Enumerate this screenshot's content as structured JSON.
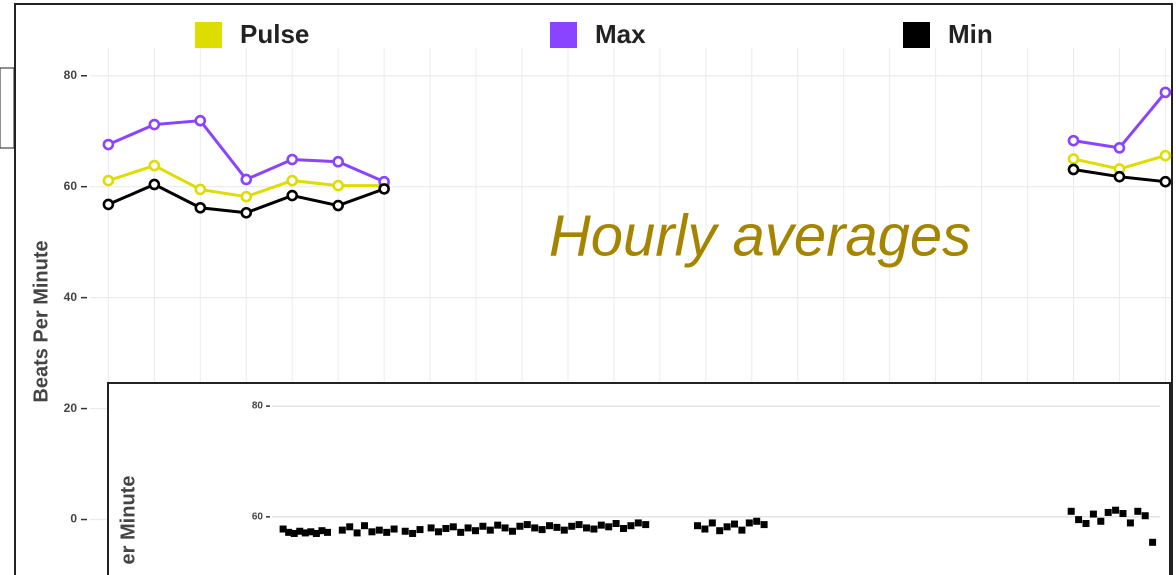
{
  "chart_data": [
    {
      "type": "line",
      "annotation": "Hourly averages",
      "y_label": "Beats Per Minute",
      "x": [
        0,
        1,
        2,
        3,
        4,
        5,
        6,
        7,
        8,
        9,
        10,
        11,
        12,
        13,
        14,
        15,
        16,
        17,
        18,
        19,
        20,
        21,
        22,
        23
      ],
      "xlim": [
        -0.4,
        23.1
      ],
      "xticks": [
        0,
        1,
        2,
        3,
        4,
        5,
        6,
        7,
        8,
        9,
        10,
        11,
        12,
        13,
        14,
        15,
        16,
        17,
        18,
        19,
        20,
        21,
        22,
        23
      ],
      "ylim": [
        -10,
        85
      ],
      "yticks": [
        0,
        20,
        40,
        60,
        80
      ],
      "grid": true,
      "legend": "top",
      "series": [
        {
          "name": "Pulse",
          "color": "#dddd00",
          "values": [
            61.1,
            63.8,
            59.5,
            58.2,
            61.1,
            60.2,
            60.2,
            null,
            null,
            null,
            null,
            null,
            null,
            null,
            null,
            null,
            null,
            null,
            null,
            null,
            null,
            65.0,
            63.2,
            65.6
          ]
        },
        {
          "name": "Max",
          "color": "#8a44ff",
          "values": [
            67.6,
            71.2,
            71.9,
            61.3,
            64.9,
            64.5,
            60.9,
            null,
            null,
            null,
            null,
            null,
            null,
            null,
            null,
            null,
            null,
            null,
            null,
            null,
            null,
            68.3,
            67.0,
            77.0
          ]
        },
        {
          "name": "Min",
          "color": "#000000",
          "values": [
            56.8,
            60.4,
            56.2,
            55.3,
            58.4,
            56.6,
            59.6,
            null,
            null,
            null,
            null,
            null,
            null,
            null,
            null,
            null,
            null,
            null,
            null,
            null,
            null,
            63.1,
            61.8,
            60.9
          ]
        }
      ]
    },
    {
      "type": "scatter",
      "y_label": "er Minute",
      "color": "#000000",
      "xlim": [
        0,
        24
      ],
      "ylim": [
        49.5,
        82
      ],
      "yticks": [
        60,
        80
      ],
      "grid": true,
      "x": [
        0.3,
        0.45,
        0.6,
        0.75,
        0.9,
        1.05,
        1.2,
        1.35,
        1.5,
        1.9,
        2.1,
        2.3,
        2.5,
        2.7,
        2.9,
        3.1,
        3.3,
        3.6,
        3.8,
        4.0,
        4.3,
        4.5,
        4.7,
        4.9,
        5.1,
        5.3,
        5.5,
        5.7,
        5.9,
        6.1,
        6.3,
        6.5,
        6.7,
        6.9,
        7.1,
        7.3,
        7.5,
        7.7,
        7.9,
        8.1,
        8.3,
        8.5,
        8.7,
        8.9,
        9.1,
        9.3,
        9.5,
        9.7,
        9.9,
        10.1,
        11.5,
        11.7,
        11.9,
        12.1,
        12.3,
        12.5,
        12.7,
        12.9,
        13.1,
        13.3,
        21.6,
        21.8,
        22.0,
        22.2,
        22.4,
        22.6,
        22.8,
        23.0,
        23.2,
        23.4,
        23.6,
        23.8
      ],
      "values": [
        57.8,
        57.2,
        57.0,
        57.4,
        57.1,
        57.3,
        57.0,
        57.5,
        57.2,
        57.6,
        58.2,
        57.1,
        58.4,
        57.3,
        57.6,
        57.2,
        57.8,
        57.4,
        57.0,
        57.7,
        58.0,
        57.3,
        57.9,
        58.2,
        57.2,
        58.0,
        57.5,
        58.3,
        57.6,
        58.5,
        58.0,
        57.4,
        58.3,
        58.6,
        58.0,
        57.7,
        58.4,
        58.1,
        57.6,
        58.3,
        58.6,
        58.0,
        57.8,
        58.5,
        58.2,
        58.8,
        57.9,
        58.4,
        58.9,
        58.6,
        58.4,
        57.8,
        58.9,
        57.5,
        58.2,
        58.7,
        57.6,
        58.9,
        59.2,
        58.6,
        61.0,
        59.5,
        58.8,
        60.5,
        59.2,
        60.8,
        61.2,
        60.6,
        58.9,
        61.0,
        60.2,
        55.4
      ]
    }
  ]
}
